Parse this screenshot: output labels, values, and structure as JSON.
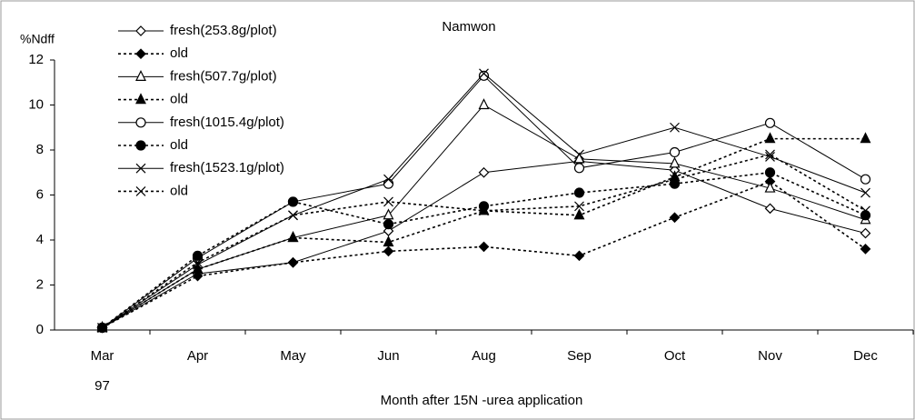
{
  "chart_data": {
    "type": "line",
    "title": "Namwon",
    "y_label": "%Ndff",
    "x_label": "Month after 15N -urea application",
    "categories": [
      "Mar",
      "Apr",
      "May",
      "Jun",
      "Aug",
      "Sep",
      "Oct",
      "Nov",
      "Dec"
    ],
    "year_label": "97",
    "ylim": [
      0,
      12
    ],
    "yticks": [
      0,
      2,
      4,
      6,
      8,
      10,
      12
    ],
    "grid": false,
    "legend": "upper left",
    "series": [
      {
        "name": "fresh(253.8g/plot)",
        "color": "#000000",
        "marker": "diamond-open",
        "line_style": "solid",
        "values": [
          0.1,
          2.5,
          3.0,
          4.4,
          7.0,
          7.5,
          7.1,
          5.4,
          4.3
        ]
      },
      {
        "name": "old",
        "color": "#000000",
        "marker": "diamond-filled",
        "line_style": "dotted",
        "values": [
          0.1,
          2.4,
          3.0,
          3.5,
          3.7,
          3.3,
          5.0,
          6.6,
          3.6
        ]
      },
      {
        "name": "fresh(507.7g/plot)",
        "color": "#000000",
        "marker": "triangle-open",
        "line_style": "solid",
        "values": [
          0.1,
          2.7,
          4.1,
          5.1,
          10.0,
          7.6,
          7.4,
          6.3,
          4.9
        ]
      },
      {
        "name": "old",
        "color": "#000000",
        "marker": "triangle-filled",
        "line_style": "dotted",
        "values": [
          0.1,
          2.7,
          4.1,
          3.9,
          5.3,
          5.1,
          6.8,
          8.5,
          8.5
        ]
      },
      {
        "name": "fresh(1015.4g/plot)",
        "color": "#000000",
        "marker": "circle-open",
        "line_style": "solid",
        "values": [
          0.1,
          3.2,
          5.7,
          6.5,
          11.3,
          7.2,
          7.9,
          9.2,
          6.7
        ]
      },
      {
        "name": "old",
        "color": "#000000",
        "marker": "circle-filled",
        "line_style": "dotted",
        "values": [
          0.1,
          3.3,
          5.7,
          4.7,
          5.5,
          6.1,
          6.5,
          7.0,
          5.1
        ]
      },
      {
        "name": "fresh(1523.1g/plot)",
        "color": "#000000",
        "marker": "x",
        "line_style": "solid",
        "values": [
          0.1,
          2.9,
          5.1,
          6.7,
          11.4,
          7.8,
          9.0,
          7.7,
          6.1
        ]
      },
      {
        "name": "old",
        "color": "#000000",
        "marker": "x",
        "line_style": "dotted",
        "values": [
          0.1,
          3.0,
          5.1,
          5.7,
          5.3,
          5.5,
          6.7,
          7.8,
          5.3
        ]
      }
    ]
  }
}
